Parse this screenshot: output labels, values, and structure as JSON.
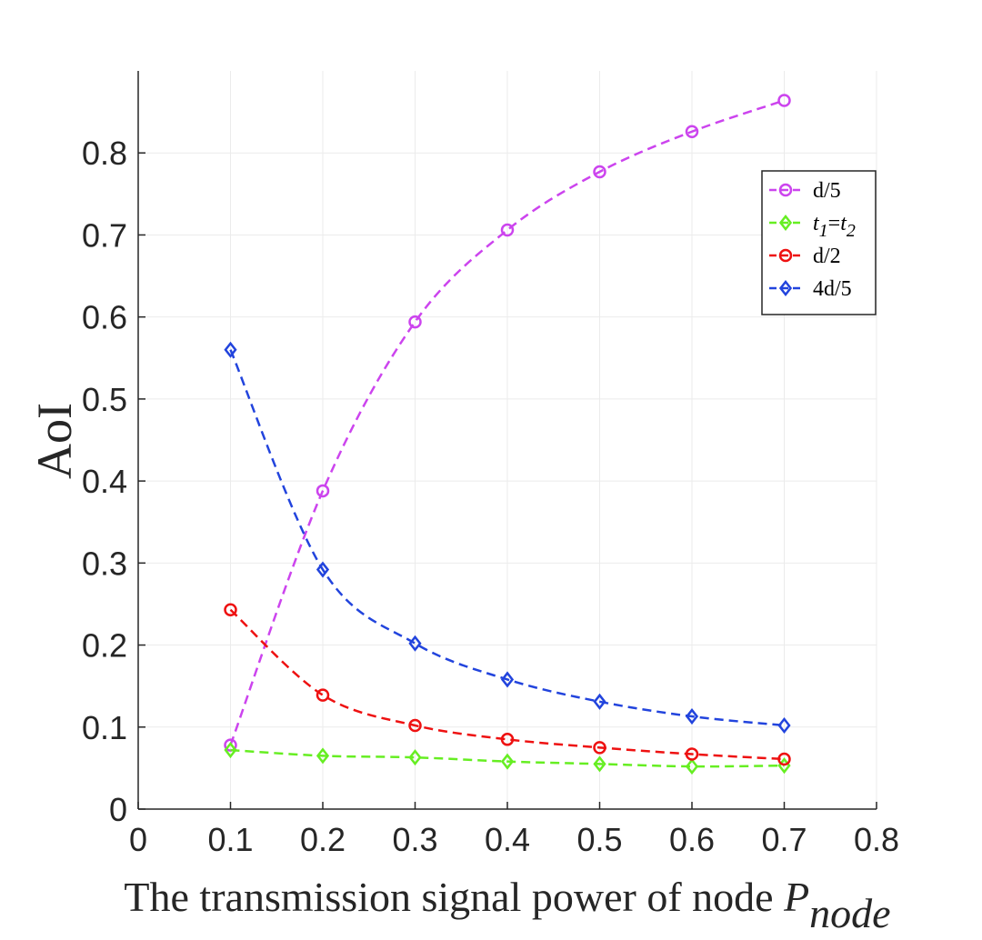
{
  "chart_data": {
    "type": "line",
    "title": "",
    "xlabel": "The transmission signal power of node ",
    "xlabel_var": "P",
    "xlabel_sub": "node",
    "ylabel": "AoI",
    "xlim": [
      0,
      0.8
    ],
    "ylim": [
      0,
      0.9
    ],
    "xticks": [
      "0",
      "0.1",
      "0.2",
      "0.3",
      "0.4",
      "0.5",
      "0.6",
      "0.7",
      "0.8"
    ],
    "yticks": [
      "0",
      "0.1",
      "0.2",
      "0.3",
      "0.4",
      "0.5",
      "0.6",
      "0.7",
      "0.8"
    ],
    "grid": true,
    "legend_position": "top-right",
    "x": [
      0.1,
      0.2,
      0.3,
      0.4,
      0.5,
      0.6,
      0.7
    ],
    "series": [
      {
        "name": "d/5",
        "color": "#cc44ee",
        "marker": "circle",
        "values": [
          0.078,
          0.388,
          0.594,
          0.706,
          0.777,
          0.826,
          0.864
        ]
      },
      {
        "name": "t1=t2",
        "legend_t": "t",
        "legend_sub1": "1",
        "legend_sub2": "2",
        "color": "#66ee22",
        "marker": "diamond",
        "values": [
          0.072,
          0.065,
          0.063,
          0.058,
          0.055,
          0.052,
          0.053
        ]
      },
      {
        "name": "d/2",
        "color": "#ee1111",
        "marker": "circle",
        "values": [
          0.243,
          0.139,
          0.102,
          0.085,
          0.075,
          0.067,
          0.061
        ]
      },
      {
        "name": "4d/5",
        "color": "#2244dd",
        "marker": "diamond",
        "values": [
          0.56,
          0.292,
          0.202,
          0.158,
          0.131,
          0.113,
          0.102
        ]
      }
    ]
  }
}
